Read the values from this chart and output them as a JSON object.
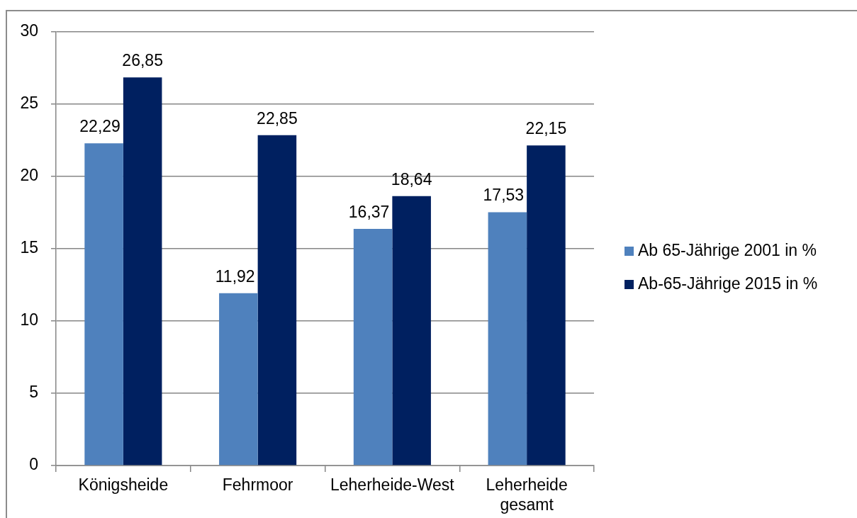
{
  "chart_data": {
    "type": "bar",
    "categories": [
      "Königsheide",
      "Fehrmoor",
      "Leherheide-West",
      "Leherheide gesamt"
    ],
    "series": [
      {
        "name": "Ab 65-Jährige 2001 in %",
        "color": "#4f81bd",
        "values": [
          22.29,
          11.92,
          16.37,
          17.53
        ],
        "value_labels": [
          "22,29",
          "11,92",
          "16,37",
          "17,53"
        ]
      },
      {
        "name": "Ab-65-Jährige 2015 in %",
        "color": "#002060",
        "values": [
          26.85,
          22.85,
          18.64,
          22.15
        ],
        "value_labels": [
          "26,85",
          "22,85",
          "18,64",
          "22,15"
        ]
      }
    ],
    "ylim": [
      0,
      30
    ],
    "yticks": [
      0,
      5,
      10,
      15,
      20,
      25,
      30
    ],
    "grid": "y",
    "legend": "right"
  }
}
